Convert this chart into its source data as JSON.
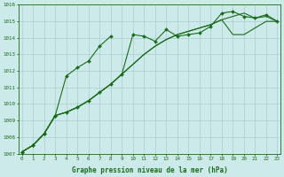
{
  "x": [
    0,
    1,
    2,
    3,
    4,
    5,
    6,
    7,
    8,
    9,
    10,
    11,
    12,
    13,
    14,
    15,
    16,
    17,
    18,
    19,
    20,
    21,
    22,
    23
  ],
  "line1_x": [
    0,
    1,
    2,
    3,
    4,
    5,
    6,
    7,
    8
  ],
  "line1_y": [
    1007.1,
    1007.5,
    1008.2,
    1009.3,
    1011.7,
    1012.2,
    1012.6,
    1013.5,
    1014.1
  ],
  "line2_x": [
    0,
    1,
    2,
    3,
    4,
    5,
    6,
    7,
    8,
    9,
    10,
    11,
    12,
    13,
    14,
    15,
    16,
    17,
    18,
    19,
    20,
    21,
    22,
    23
  ],
  "line2_y": [
    1007.1,
    1007.5,
    1008.2,
    1009.3,
    1009.5,
    1009.8,
    1010.2,
    1010.7,
    1011.2,
    1011.8,
    1014.2,
    1014.1,
    1013.8,
    1014.5,
    1014.1,
    1014.2,
    1014.3,
    1014.7,
    1015.5,
    1015.6,
    1015.3,
    1015.2,
    1015.4,
    1015.0
  ],
  "line3_x": [
    0,
    1,
    2,
    3,
    4,
    5,
    6,
    7,
    8,
    9,
    10,
    11,
    12,
    13,
    14,
    15,
    16,
    17,
    18,
    19,
    20,
    21,
    22,
    23
  ],
  "line3_y": [
    1007.1,
    1007.5,
    1008.2,
    1009.3,
    1009.5,
    1009.8,
    1010.2,
    1010.7,
    1011.2,
    1011.8,
    1012.4,
    1013.0,
    1013.5,
    1013.9,
    1014.2,
    1014.4,
    1014.6,
    1014.8,
    1015.1,
    1015.3,
    1015.5,
    1015.2,
    1015.3,
    1015.0
  ],
  "line4_x": [
    0,
    1,
    2,
    3,
    4,
    5,
    6,
    7,
    8,
    9,
    10,
    11,
    12,
    13,
    14,
    15,
    16,
    17,
    18,
    19,
    20,
    21,
    22,
    23
  ],
  "line4_y": [
    1007.1,
    1007.5,
    1008.2,
    1009.3,
    1009.5,
    1009.8,
    1010.2,
    1010.7,
    1011.2,
    1011.8,
    1012.4,
    1013.0,
    1013.5,
    1013.9,
    1014.2,
    1014.4,
    1014.6,
    1014.8,
    1015.1,
    1014.2,
    1014.2,
    1014.6,
    1015.0,
    1015.0
  ],
  "ylim": [
    1007,
    1016
  ],
  "xlim": [
    -0.3,
    23.3
  ],
  "yticks": [
    1007,
    1008,
    1009,
    1010,
    1011,
    1012,
    1013,
    1014,
    1015,
    1016
  ],
  "xticks": [
    0,
    1,
    2,
    3,
    4,
    5,
    6,
    7,
    8,
    9,
    10,
    11,
    12,
    13,
    14,
    15,
    16,
    17,
    18,
    19,
    20,
    21,
    22,
    23
  ],
  "xlabel": "Graphe pression niveau de la mer (hPa)",
  "line_color": "#1a6b1a",
  "bg_color": "#cdeaea",
  "grid_color": "#a8cccc",
  "axis_color": "#1a6b1a",
  "tick_color": "#1a6b1a",
  "label_color": "#1a6b1a",
  "marker_size": 2.0,
  "linewidth": 0.8
}
